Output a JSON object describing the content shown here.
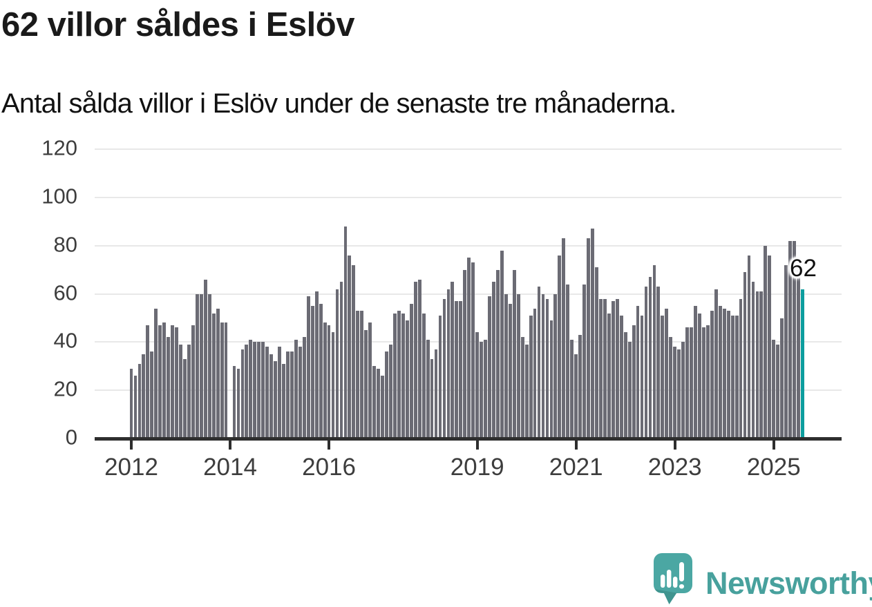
{
  "title": "62 villor såldes i Eslöv",
  "subtitle": "Antal sålda villor i Eslöv under de senaste tre månaderna.",
  "annotation": {
    "label": "62"
  },
  "branding": {
    "name": "Newsworthy"
  },
  "colors": {
    "bar": "#6b6b74",
    "highlight": "#0c9d9e",
    "grid": "#e8e8e8",
    "axis": "#2e2e2e",
    "tick_text": "#3d3d3d",
    "brand_teal": "#48a19d",
    "brand_teal_dark": "#3f948f"
  },
  "chart_data": {
    "type": "bar",
    "title": "62 villor såldes i Eslöv",
    "subtitle": "Antal sålda villor i Eslöv under de senaste tre månaderna.",
    "xlabel": "",
    "ylabel": "",
    "start": "2012-01",
    "frequency": "monthly",
    "grid": "horizontal",
    "y_ticks": [
      0,
      20,
      40,
      60,
      80,
      100,
      120
    ],
    "ylim": [
      0,
      126
    ],
    "x_tick_years": [
      2012,
      2014,
      2016,
      2019,
      2021,
      2023,
      2025
    ],
    "legend": "none",
    "values": [
      29,
      26,
      31,
      35,
      47,
      36,
      54,
      47,
      48,
      42,
      47,
      46,
      39,
      33,
      39,
      47,
      60,
      60,
      66,
      60,
      52,
      54,
      48,
      48,
      0,
      30,
      29,
      37,
      39,
      41,
      40,
      40,
      40,
      38,
      35,
      32,
      38,
      31,
      36,
      36,
      41,
      38,
      42,
      59,
      55,
      61,
      56,
      48,
      47,
      44,
      62,
      65,
      88,
      76,
      72,
      53,
      53,
      45,
      48,
      30,
      29,
      26,
      36,
      39,
      52,
      53,
      52,
      49,
      56,
      65,
      66,
      52,
      41,
      33,
      37,
      51,
      58,
      62,
      65,
      57,
      57,
      70,
      75,
      73,
      44,
      40,
      41,
      59,
      65,
      70,
      78,
      60,
      56,
      70,
      60,
      42,
      39,
      51,
      54,
      63,
      60,
      58,
      49,
      60,
      76,
      83,
      64,
      41,
      35,
      43,
      64,
      83,
      87,
      71,
      58,
      58,
      52,
      57,
      58,
      51,
      44,
      40,
      47,
      55,
      51,
      63,
      67,
      72,
      63,
      51,
      54,
      42,
      38,
      37,
      40,
      46,
      46,
      55,
      52,
      46,
      47,
      53,
      62,
      55,
      54,
      53,
      51,
      51,
      58,
      69,
      76,
      65,
      61,
      61,
      80,
      76,
      41,
      39,
      50,
      72,
      82,
      82,
      70,
      62
    ],
    "highlight": {
      "index": 163,
      "value": 62,
      "label": "62",
      "color": "#0c9d9e"
    }
  }
}
